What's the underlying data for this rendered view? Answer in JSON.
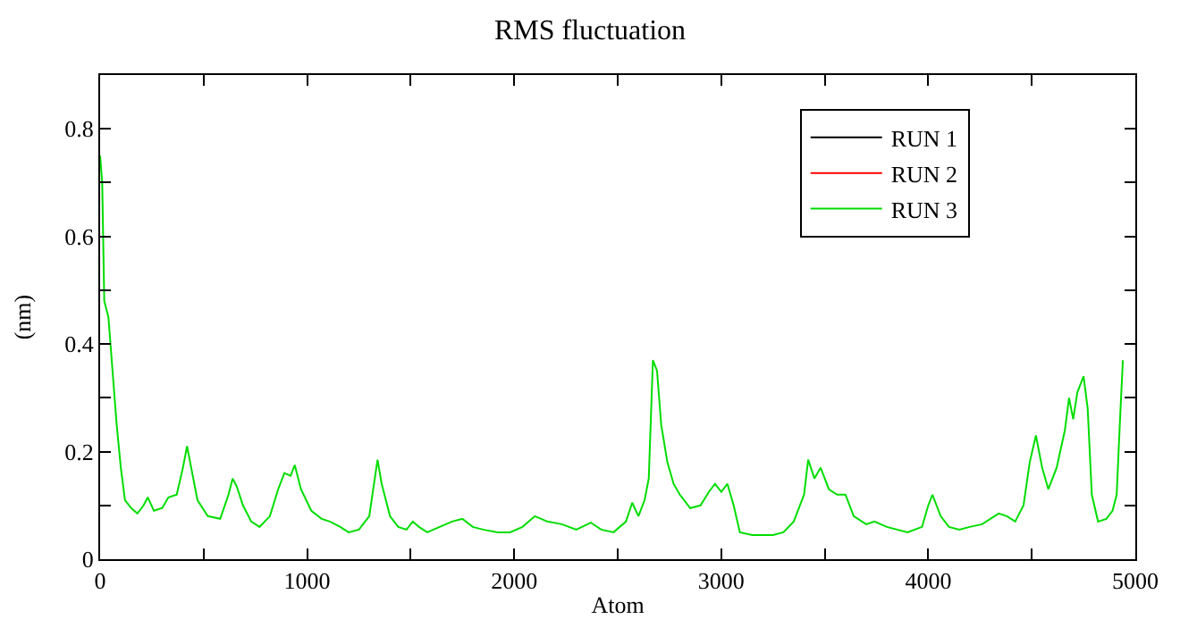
{
  "chart_data": {
    "type": "line",
    "title": "RMS fluctuation",
    "xlabel": "Atom",
    "ylabel": "(nm)",
    "xlim": [
      0,
      5000
    ],
    "ylim": [
      0,
      0.9
    ],
    "xticks": [
      0,
      {
        "value": 500,
        "label": null
      },
      1000,
      {
        "value": 1500,
        "label": null
      },
      2000,
      {
        "value": 2500,
        "label": null
      },
      3000,
      {
        "value": 3500,
        "label": null
      },
      4000,
      {
        "value": 4500,
        "label": null
      },
      5000
    ],
    "yticks": [
      0,
      {
        "value": 0.1,
        "label": null
      },
      0.2,
      {
        "value": 0.3,
        "label": null
      },
      0.4,
      {
        "value": 0.5,
        "label": null
      },
      0.6,
      {
        "value": 0.7,
        "label": null
      },
      0.8
    ],
    "tick_labels": "xy",
    "legend": "top right",
    "marker": "none",
    "line_style": "solid",
    "series": [
      {
        "name": "RUN 1",
        "color": "#000000"
      },
      {
        "name": "RUN 2",
        "color": "#ff0000"
      },
      {
        "name": "RUN 3",
        "color": "#00dd00",
        "x": [
          0,
          10,
          20,
          40,
          60,
          80,
          100,
          120,
          150,
          180,
          210,
          230,
          260,
          300,
          330,
          370,
          400,
          420,
          440,
          470,
          520,
          580,
          620,
          640,
          660,
          690,
          730,
          770,
          820,
          860,
          890,
          920,
          940,
          970,
          1020,
          1070,
          1110,
          1160,
          1200,
          1250,
          1300,
          1340,
          1360,
          1400,
          1440,
          1480,
          1510,
          1540,
          1580,
          1640,
          1700,
          1750,
          1800,
          1850,
          1920,
          1980,
          2040,
          2100,
          2160,
          2230,
          2300,
          2370,
          2420,
          2480,
          2540,
          2570,
          2600,
          2630,
          2650,
          2670,
          2690,
          2710,
          2740,
          2770,
          2800,
          2850,
          2900,
          2940,
          2970,
          3000,
          3030,
          3060,
          3090,
          3150,
          3250,
          3300,
          3350,
          3400,
          3420,
          3450,
          3480,
          3520,
          3560,
          3600,
          3640,
          3700,
          3740,
          3800,
          3900,
          3970,
          4000,
          4020,
          4060,
          4100,
          4150,
          4200,
          4260,
          4300,
          4340,
          4380,
          4420,
          4460,
          4490,
          4520,
          4550,
          4580,
          4620,
          4660,
          4680,
          4700,
          4720,
          4750,
          4770,
          4790,
          4820,
          4860,
          4890,
          4910,
          4925,
          4940
        ],
        "values": [
          0.75,
          0.7,
          0.48,
          0.45,
          0.35,
          0.25,
          0.17,
          0.11,
          0.095,
          0.085,
          0.1,
          0.115,
          0.09,
          0.095,
          0.115,
          0.12,
          0.17,
          0.21,
          0.17,
          0.11,
          0.08,
          0.075,
          0.12,
          0.15,
          0.135,
          0.1,
          0.07,
          0.06,
          0.08,
          0.13,
          0.16,
          0.155,
          0.175,
          0.13,
          0.09,
          0.075,
          0.07,
          0.06,
          0.05,
          0.055,
          0.08,
          0.185,
          0.14,
          0.08,
          0.06,
          0.055,
          0.07,
          0.06,
          0.05,
          0.06,
          0.07,
          0.075,
          0.06,
          0.055,
          0.05,
          0.05,
          0.06,
          0.08,
          0.07,
          0.065,
          0.055,
          0.068,
          0.055,
          0.05,
          0.07,
          0.105,
          0.08,
          0.11,
          0.15,
          0.37,
          0.35,
          0.25,
          0.18,
          0.14,
          0.12,
          0.095,
          0.1,
          0.125,
          0.14,
          0.125,
          0.14,
          0.1,
          0.05,
          0.045,
          0.045,
          0.05,
          0.07,
          0.12,
          0.185,
          0.15,
          0.17,
          0.13,
          0.12,
          0.12,
          0.08,
          0.065,
          0.07,
          0.06,
          0.05,
          0.06,
          0.1,
          0.12,
          0.08,
          0.06,
          0.055,
          0.06,
          0.065,
          0.075,
          0.085,
          0.08,
          0.07,
          0.1,
          0.18,
          0.23,
          0.17,
          0.13,
          0.17,
          0.24,
          0.3,
          0.26,
          0.31,
          0.34,
          0.28,
          0.12,
          0.07,
          0.075,
          0.09,
          0.12,
          0.25,
          0.37
        ]
      }
    ]
  }
}
